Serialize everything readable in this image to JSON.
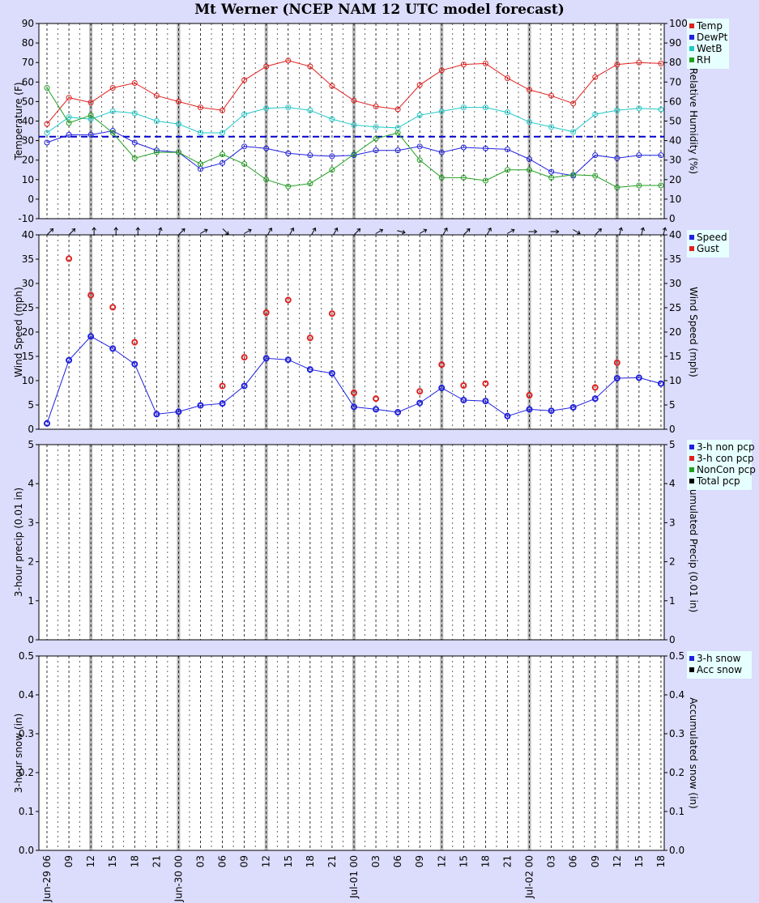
{
  "title": "Mt Werner (NCEP NAM 12 UTC model forecast)",
  "time_axis": {
    "hour_labels": [
      "06",
      "09",
      "12",
      "15",
      "18",
      "21",
      "00",
      "03",
      "06",
      "09",
      "12",
      "15",
      "18",
      "21",
      "00",
      "03",
      "06",
      "09",
      "12",
      "15",
      "18",
      "21",
      "00",
      "03",
      "06",
      "09",
      "12",
      "15",
      "18"
    ],
    "date_prefixes": {
      "0": "Jun-29",
      "6": "Jun-30",
      "14": "Jul-01",
      "22": "Jul-02"
    }
  },
  "chart_data": [
    {
      "type": "line",
      "panel": "temperature",
      "ylabel": "Temperature (F)",
      "y2label": "Relative Humidity (%)",
      "ylim": [
        -10,
        90
      ],
      "y2lim": [
        0,
        100
      ],
      "yticks": [
        -10,
        0,
        10,
        20,
        30,
        40,
        50,
        60,
        70,
        80,
        90
      ],
      "y2ticks": [
        0,
        10,
        20,
        30,
        40,
        50,
        60,
        70,
        80,
        90,
        100
      ],
      "freezing_line": 32,
      "series": [
        {
          "name": "Temp",
          "color": "#e02020",
          "axis": "left",
          "values": [
            38.5,
            52,
            49.5,
            57,
            59.5,
            53,
            50,
            47,
            45.5,
            61,
            68,
            71,
            68,
            58,
            50.5,
            47.5,
            46,
            58.5,
            66,
            69,
            69.5,
            62,
            56,
            53,
            49,
            62.5,
            69,
            70,
            69.5
          ]
        },
        {
          "name": "DewPt",
          "color": "#2020e0",
          "axis": "left",
          "values": [
            29,
            33,
            33,
            35,
            29,
            25,
            24,
            15.5,
            18.5,
            27,
            26,
            23.5,
            22.5,
            22,
            22.5,
            25,
            25,
            27,
            24,
            26.5,
            26,
            25.5,
            20.5,
            14,
            12,
            22.5,
            21,
            22.5,
            22.5
          ]
        },
        {
          "name": "WetB",
          "color": "#20c8c8",
          "axis": "left",
          "values": [
            34,
            42,
            41,
            45,
            44,
            40,
            38.5,
            34,
            34,
            43.5,
            46.5,
            47,
            45.5,
            41,
            38,
            37,
            36.5,
            43,
            45,
            47,
            47,
            44.5,
            39.5,
            37,
            34.5,
            43.5,
            45.5,
            46.5,
            46
          ]
        },
        {
          "name": "RH",
          "color": "#20a020",
          "axis": "right",
          "values": [
            67,
            49,
            53,
            44,
            31,
            34,
            34,
            28,
            33,
            28,
            20,
            16.5,
            18,
            25,
            33,
            41,
            44,
            30,
            21,
            21,
            19.5,
            25,
            25,
            21,
            22.5,
            22,
            16,
            17,
            17
          ]
        }
      ]
    },
    {
      "type": "line",
      "panel": "wind",
      "ylabel": "Wind Speed (mph)",
      "y2label": "Wind Speed (mph)",
      "ylim": [
        0,
        40
      ],
      "yticks": [
        0,
        5,
        10,
        15,
        20,
        25,
        30,
        35,
        40
      ],
      "wind_direction_deg": [
        45,
        45,
        90,
        90,
        90,
        75,
        45,
        30,
        -45,
        30,
        60,
        60,
        60,
        60,
        45,
        30,
        -15,
        30,
        60,
        45,
        60,
        30,
        0,
        0,
        -30,
        45,
        75,
        75,
        75
      ],
      "series": [
        {
          "name": "Speed",
          "color": "#2020e0",
          "values": [
            1.2,
            14.2,
            19.1,
            16.6,
            13.4,
            3.1,
            3.6,
            4.9,
            5.3,
            8.9,
            14.6,
            14.3,
            12.3,
            11.5,
            4.6,
            4.1,
            3.5,
            5.4,
            8.5,
            6,
            5.8,
            2.7,
            4.1,
            3.8,
            4.5,
            6.3,
            10.5,
            10.6,
            9.4
          ]
        },
        {
          "name": "Gust",
          "color": "#e02020",
          "values": [
            null,
            35.1,
            27.6,
            25.1,
            17.9,
            null,
            null,
            null,
            8.9,
            14.8,
            24,
            26.6,
            18.8,
            23.8,
            7.5,
            6.3,
            null,
            7.8,
            13.3,
            9,
            9.4,
            null,
            7,
            null,
            null,
            8.6,
            13.7,
            null,
            null
          ]
        }
      ]
    },
    {
      "type": "bar",
      "panel": "precip",
      "ylabel": "3-hour precip (0.01 in)",
      "y2label": "Accumulated Precip (0.01 in)",
      "ylim": [
        0,
        5
      ],
      "yticks": [
        0,
        1,
        2,
        3,
        4,
        5
      ],
      "series": [
        {
          "name": "3-h non pcp",
          "color": "#2020e0"
        },
        {
          "name": "3-h con pcp",
          "color": "#e02020"
        },
        {
          "name": "NonCon pcp",
          "color": "#20a020"
        },
        {
          "name": "Total pcp",
          "color": "#000000"
        }
      ]
    },
    {
      "type": "bar",
      "panel": "snow",
      "ylabel": "3-hour snow (in)",
      "y2label": "Accumulated snow (in)",
      "ylim": [
        0,
        0.5
      ],
      "yticks": [
        0,
        0.1,
        0.2,
        0.3,
        0.4,
        0.5
      ],
      "series": [
        {
          "name": "3-h snow",
          "color": "#2020e0"
        },
        {
          "name": "Acc snow",
          "color": "#000000"
        }
      ]
    }
  ]
}
